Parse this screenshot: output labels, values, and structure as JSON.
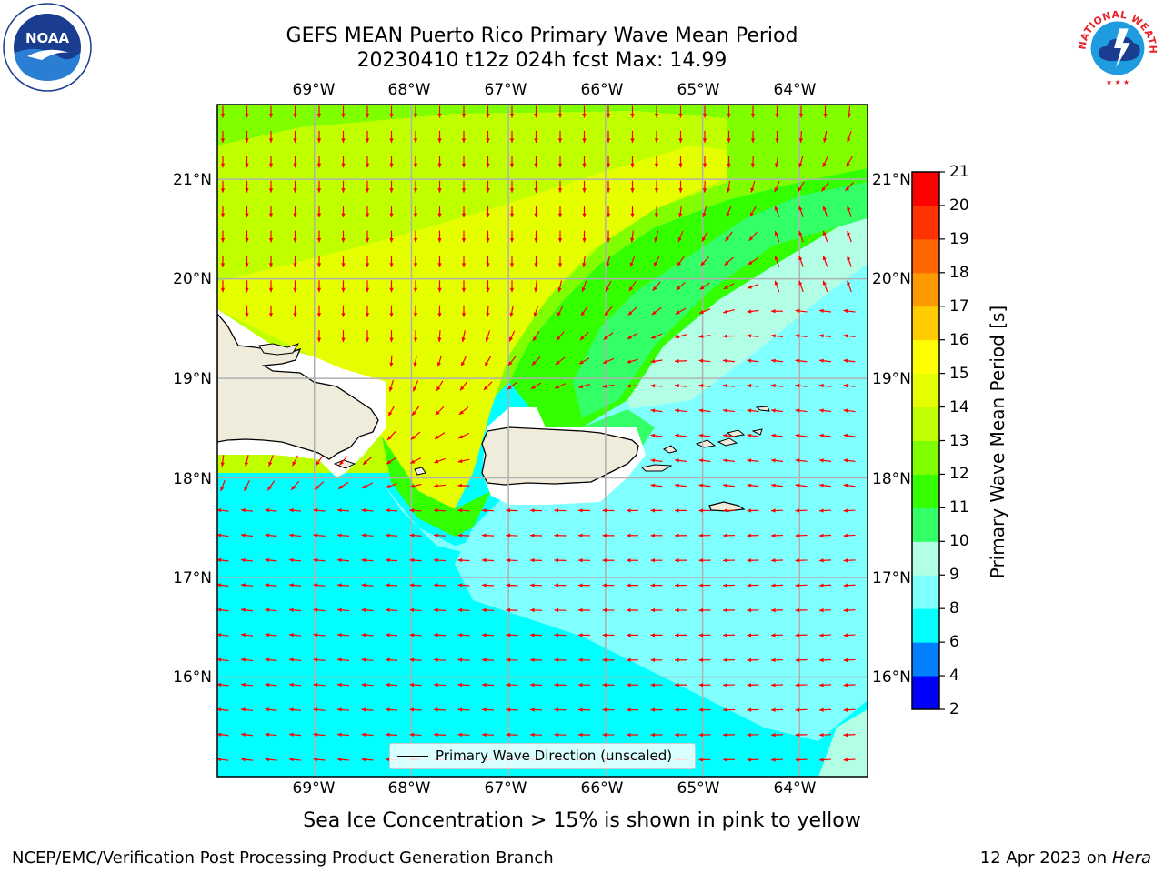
{
  "header": {
    "title_line1": "GEFS MEAN Puerto Rico Primary Wave Mean Period",
    "title_line2": "20230410 t12z 024h fcst   Max: 14.99"
  },
  "logos": {
    "noaa": {
      "icon": "noaa-logo",
      "text": "NOAA",
      "ring_text": "NATIONAL OCEANIC AND ATMOSPHERIC ADMINISTRATION · U.S. DEPARTMENT OF COMMERCE"
    },
    "nws": {
      "icon": "nws-logo",
      "ring_text": "NATIONAL WEATHER SERVICE"
    }
  },
  "map": {
    "lon_labels": [
      "69°W",
      "68°W",
      "67°W",
      "66°W",
      "65°W",
      "64°W"
    ],
    "lat_labels": [
      "21°N",
      "20°N",
      "19°N",
      "18°N",
      "17°N",
      "16°N"
    ],
    "lon_range": [
      -70.0,
      -63.3
    ],
    "lat_range": [
      15.0,
      21.75
    ],
    "land_color": "#efecdc",
    "ocean_missing_color": "#ffffff",
    "arrow_color": "#ff0000",
    "gridlines": true,
    "arrow_icon": "wave-direction-arrow"
  },
  "colorbar": {
    "label": "Primary Wave Mean Period [s]",
    "levels": [
      "2",
      "4",
      "6",
      "8",
      "9",
      "10",
      "11",
      "12",
      "13",
      "14",
      "15",
      "16",
      "17",
      "18",
      "19",
      "20",
      "21"
    ],
    "colors": [
      "#0000ff",
      "#0080ff",
      "#00ffff",
      "#80ffff",
      "#b3ffe6",
      "#33ff66",
      "#33ff00",
      "#80ff00",
      "#bfff00",
      "#e6ff00",
      "#ffff00",
      "#ffcc00",
      "#ff9900",
      "#ff6600",
      "#ff3300",
      "#ff0000"
    ]
  },
  "legend": {
    "label": "Primary Wave Direction (unscaled)"
  },
  "notes": {
    "sea_ice": "Sea Ice Concentration > 15% is shown in pink to yellow",
    "producer": "NCEP/EMC/Verification Post Processing Product Generation Branch",
    "date": "12 Apr 2023 on ",
    "machine": "Hera"
  }
}
